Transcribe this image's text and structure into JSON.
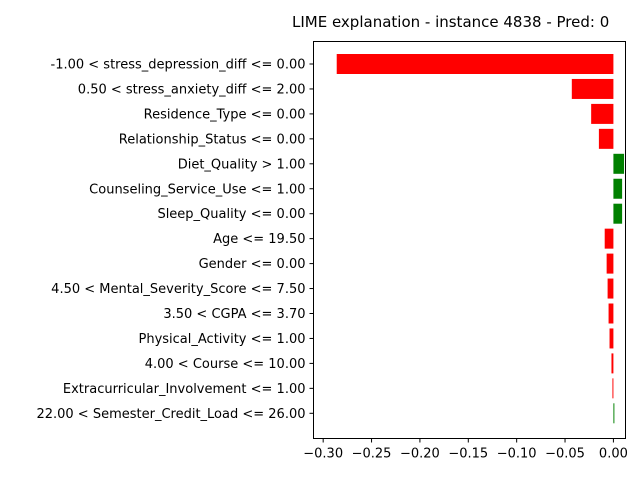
{
  "chart_data": {
    "type": "bar",
    "orientation": "horizontal",
    "title": "LIME explanation - instance 4838 - Pred: 0",
    "xlim": [
      -0.31,
      0.0125
    ],
    "xticks": [
      "-0.30",
      "-0.25",
      "-0.20",
      "-0.15",
      "-0.10",
      "-0.05",
      "0.00"
    ],
    "xtick_values": [
      -0.3,
      -0.25,
      -0.2,
      -0.15,
      -0.1,
      -0.05,
      0.0
    ],
    "grid": false,
    "colors": {
      "negative": "#ff0000",
      "positive": "#008000"
    },
    "categories": [
      "-1.00 < stress_depression_diff <= 0.00",
      "0.50 < stress_anxiety_diff <= 2.00",
      "Residence_Type <= 0.00",
      "Relationship_Status <= 0.00",
      "Diet_Quality > 1.00",
      "Counseling_Service_Use <= 1.00",
      "Sleep_Quality <= 0.00",
      "Age <= 19.50",
      "Gender <= 0.00",
      "4.50 < Mental_Severity_Score <= 7.50",
      "3.50 < CGPA <= 3.70",
      "Physical_Activity <= 1.00",
      "4.00 < Course <= 10.00",
      "Extracurricular_Involvement <= 1.00",
      "22.00 < Semester_Credit_Load <= 26.00"
    ],
    "values": [
      -0.286,
      -0.043,
      -0.023,
      -0.015,
      0.011,
      0.009,
      0.009,
      -0.009,
      -0.007,
      -0.006,
      -0.005,
      -0.004,
      -0.002,
      -0.001,
      0.001
    ]
  }
}
